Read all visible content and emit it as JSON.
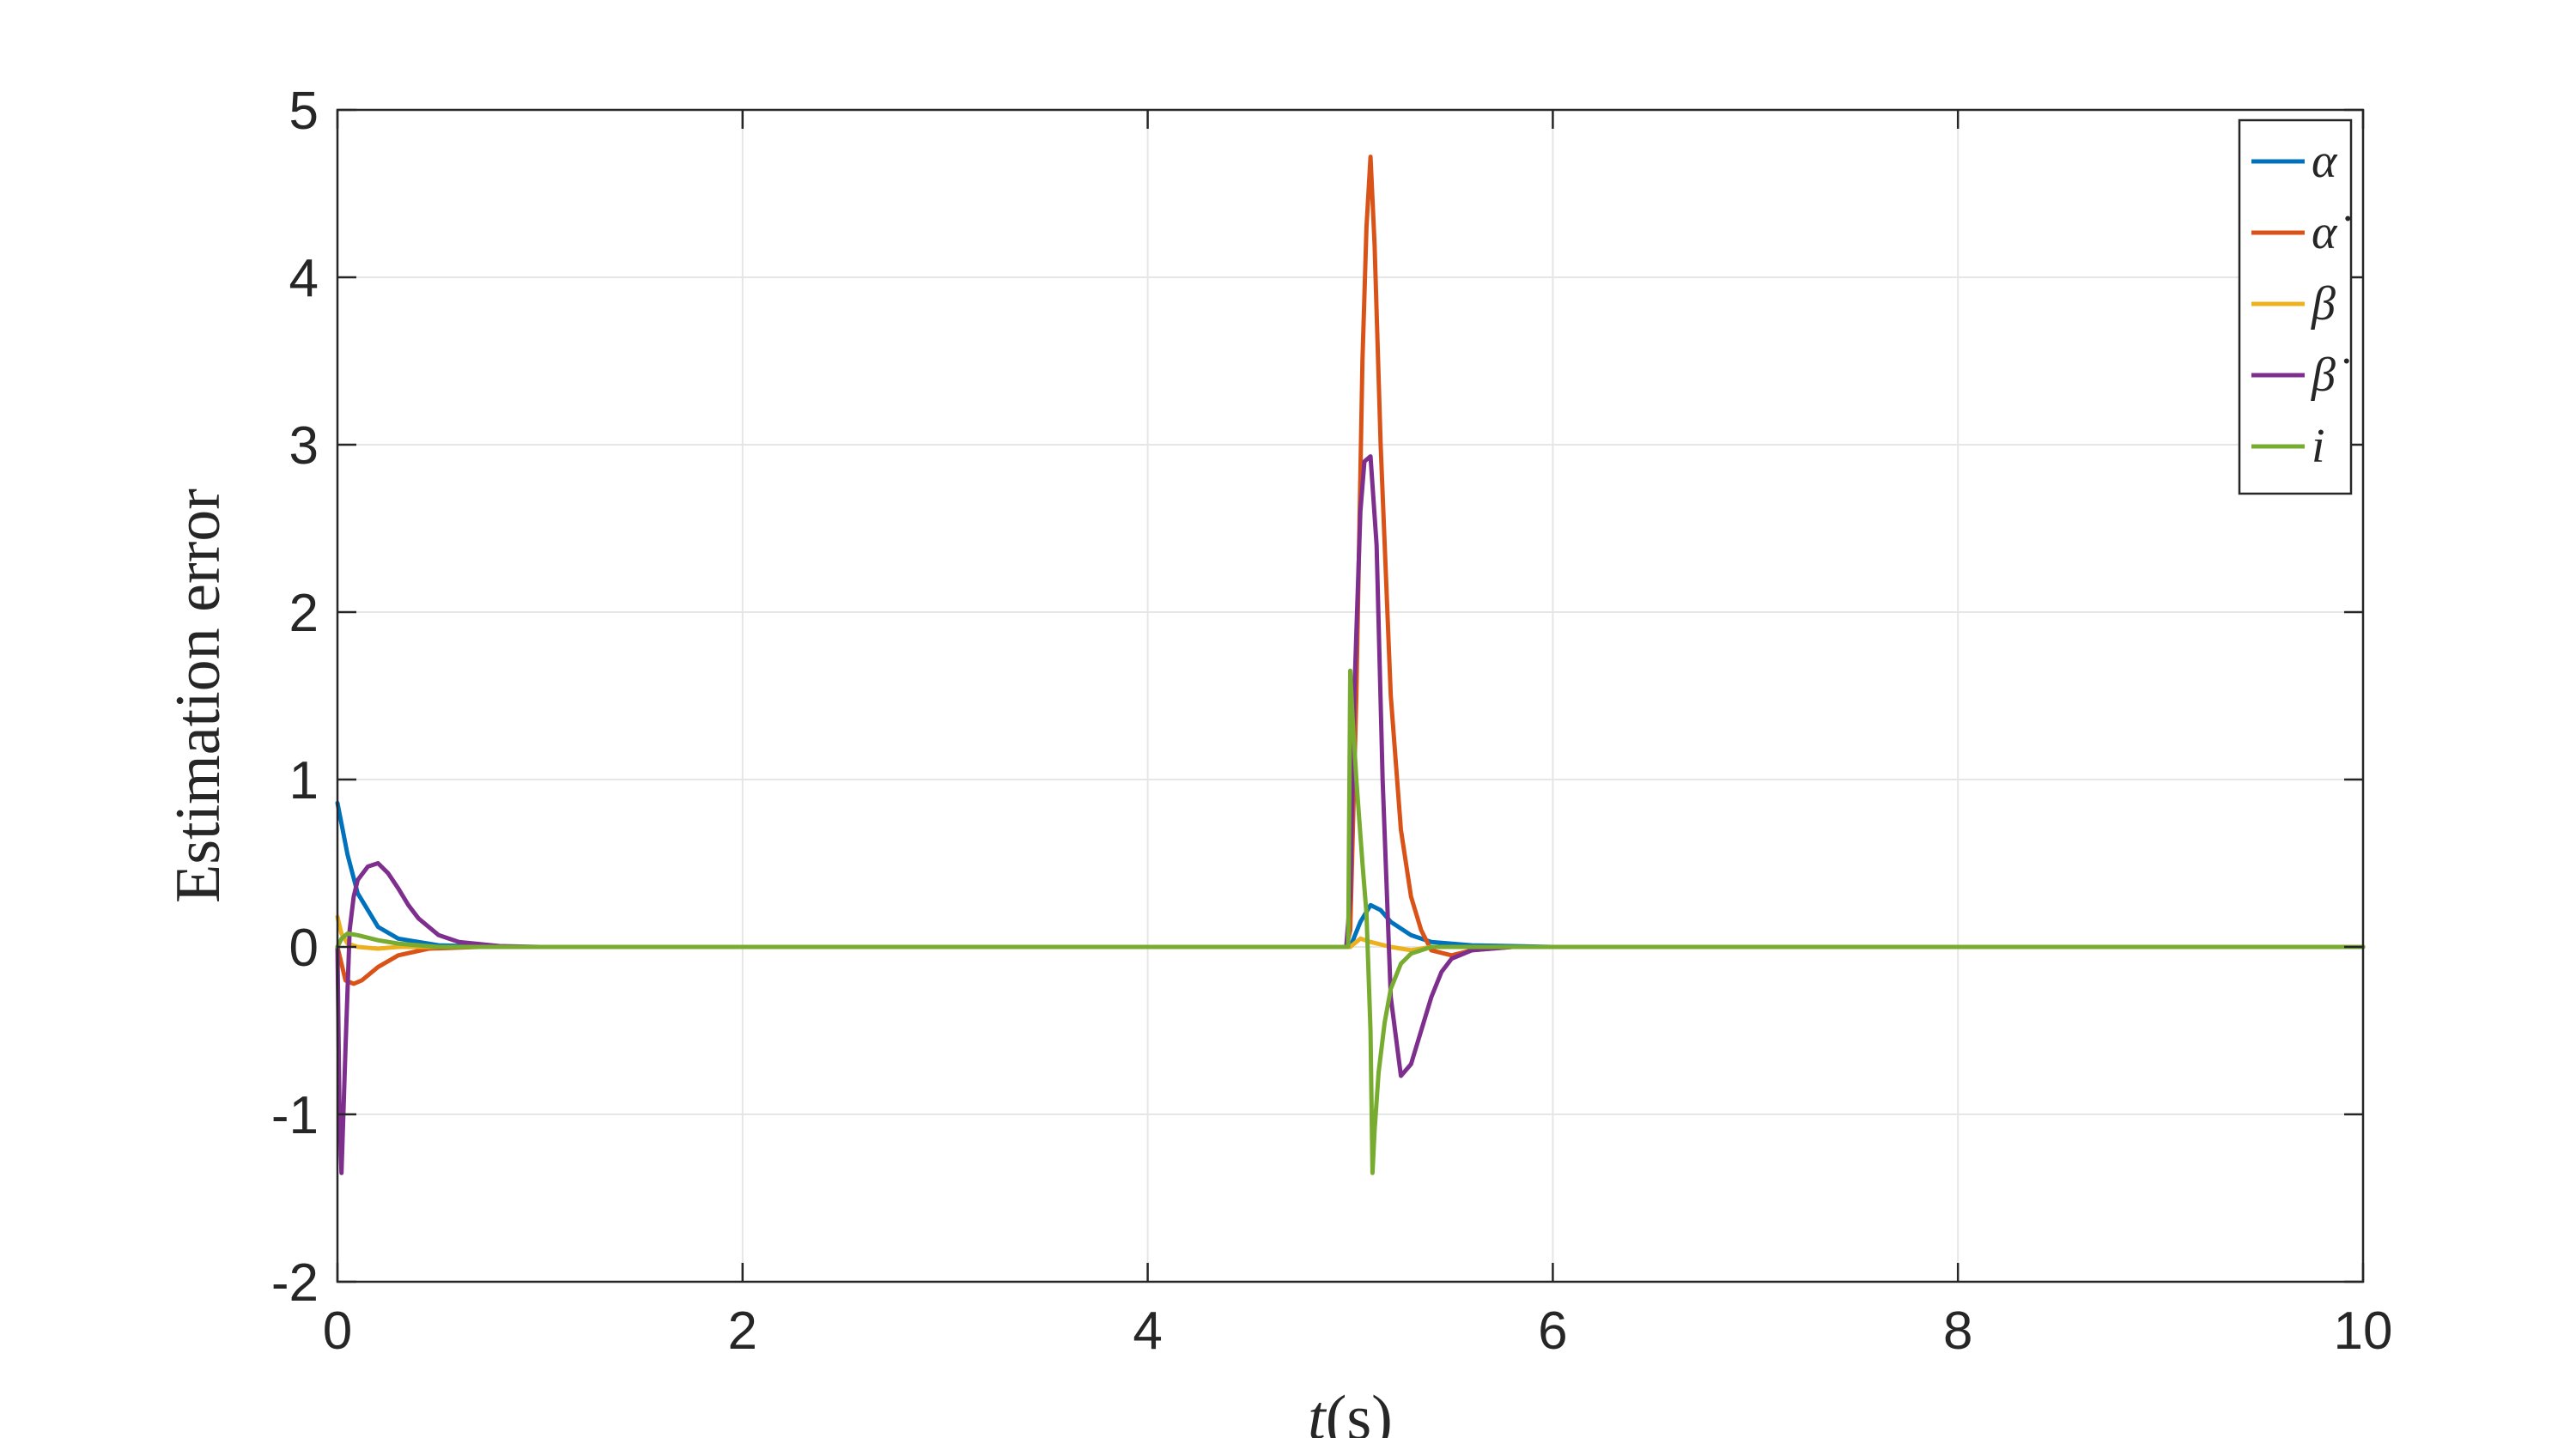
{
  "chart_data": {
    "type": "line",
    "title": "",
    "xlabel_var": "t",
    "xlabel_unit": "(s)",
    "ylabel": "Estimation error",
    "xlim": [
      0,
      10
    ],
    "ylim": [
      -2,
      5
    ],
    "xticks": [
      0,
      2,
      4,
      6,
      8,
      10
    ],
    "yticks": [
      -2,
      -1,
      0,
      1,
      2,
      3,
      4,
      5
    ],
    "grid": true,
    "legend_position": "top-right",
    "series": [
      {
        "name": "α",
        "color": "#0072BD",
        "x": [
          0,
          0.05,
          0.1,
          0.2,
          0.3,
          0.5,
          0.8,
          1.2,
          5.0,
          5.05,
          5.1,
          5.15,
          5.2,
          5.3,
          5.4,
          5.6,
          6.0,
          10
        ],
        "y": [
          0.86,
          0.55,
          0.32,
          0.12,
          0.05,
          0.01,
          0,
          0,
          0,
          0.15,
          0.25,
          0.22,
          0.15,
          0.07,
          0.03,
          0.01,
          0,
          0
        ]
      },
      {
        "name": "α̇",
        "color": "#D95319",
        "x": [
          0,
          0.04,
          0.08,
          0.12,
          0.2,
          0.3,
          0.45,
          0.7,
          1.0,
          4.98,
          5.0,
          5.03,
          5.06,
          5.08,
          5.1,
          5.12,
          5.15,
          5.2,
          5.25,
          5.3,
          5.35,
          5.4,
          5.5,
          5.6,
          5.8,
          6.0,
          10
        ],
        "y": [
          0,
          -0.2,
          -0.22,
          -0.2,
          -0.12,
          -0.05,
          -0.01,
          0,
          0,
          0,
          0.1,
          1.5,
          3.5,
          4.3,
          4.72,
          4.2,
          3.0,
          1.5,
          0.7,
          0.3,
          0.1,
          -0.02,
          -0.05,
          -0.02,
          0,
          0,
          0
        ]
      },
      {
        "name": "β",
        "color": "#EDB120",
        "x": [
          0,
          0.02,
          0.05,
          0.1,
          0.2,
          0.3,
          0.5,
          1.0,
          5.0,
          5.05,
          5.1,
          5.2,
          5.3,
          5.4,
          5.5,
          6.0,
          10
        ],
        "y": [
          0.18,
          0.08,
          0.02,
          0,
          -0.01,
          0,
          0,
          0,
          0,
          0.05,
          0.03,
          0,
          -0.02,
          0,
          0,
          0,
          0
        ]
      },
      {
        "name": "β̇",
        "color": "#7E2F8E",
        "x": [
          0,
          0.01,
          0.02,
          0.04,
          0.06,
          0.08,
          0.1,
          0.15,
          0.2,
          0.25,
          0.3,
          0.35,
          0.4,
          0.5,
          0.6,
          0.8,
          1.0,
          4.98,
          5.0,
          5.02,
          5.05,
          5.07,
          5.1,
          5.13,
          5.16,
          5.2,
          5.25,
          5.3,
          5.35,
          5.4,
          5.45,
          5.5,
          5.6,
          5.8,
          6.0,
          10
        ],
        "y": [
          0,
          -1.0,
          -1.35,
          -0.6,
          0.1,
          0.3,
          0.4,
          0.48,
          0.5,
          0.44,
          0.35,
          0.25,
          0.17,
          0.07,
          0.03,
          0.005,
          0,
          0,
          0.3,
          1.5,
          2.6,
          2.9,
          2.93,
          2.4,
          1.0,
          -0.3,
          -0.77,
          -0.7,
          -0.5,
          -0.3,
          -0.15,
          -0.07,
          -0.02,
          0,
          0,
          0
        ]
      },
      {
        "name": "i",
        "color": "#77AC30",
        "x": [
          0,
          0.02,
          0.05,
          0.1,
          0.2,
          0.3,
          0.5,
          1.0,
          4.99,
          5.0,
          5.01,
          5.03,
          5.06,
          5.08,
          5.1,
          5.11,
          5.12,
          5.14,
          5.17,
          5.2,
          5.25,
          5.3,
          5.35,
          5.4,
          5.5,
          6.0,
          10
        ],
        "y": [
          0,
          0.05,
          0.08,
          0.07,
          0.04,
          0.02,
          0,
          0,
          0,
          1.65,
          1.4,
          1.0,
          0.5,
          0.2,
          -0.5,
          -1.35,
          -1.1,
          -0.75,
          -0.45,
          -0.25,
          -0.1,
          -0.04,
          -0.02,
          0,
          0,
          0,
          0
        ]
      }
    ]
  }
}
